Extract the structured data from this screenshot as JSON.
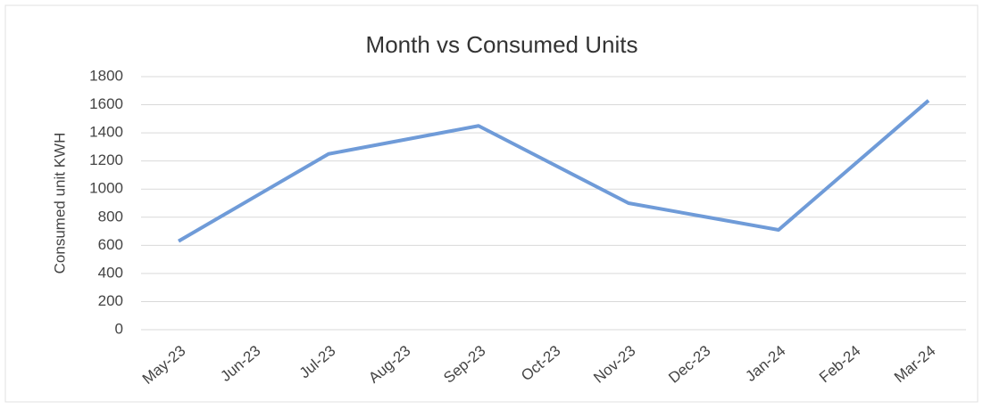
{
  "chart_data": {
    "type": "line",
    "title": "Month vs  Consumed Units",
    "y_label": "Consumed unit KWH",
    "categories": [
      "May-23",
      "Jun-23",
      "Jul-23",
      "Aug-23",
      "Sep-23",
      "Oct-23",
      "Nov-23",
      "Dec-23",
      "Jan-24",
      "Feb-24",
      "Mar-24"
    ],
    "series": [
      {
        "name": "Consumed Units",
        "color": "#6f9bd8",
        "values": [
          630,
          940,
          1250,
          1350,
          1450,
          1175,
          900,
          805,
          710,
          1170,
          1630
        ]
      }
    ],
    "ylim": [
      0,
      1800
    ],
    "yticks": [
      0,
      200,
      400,
      600,
      800,
      1000,
      1200,
      1400,
      1600,
      1800
    ],
    "grid": true
  }
}
